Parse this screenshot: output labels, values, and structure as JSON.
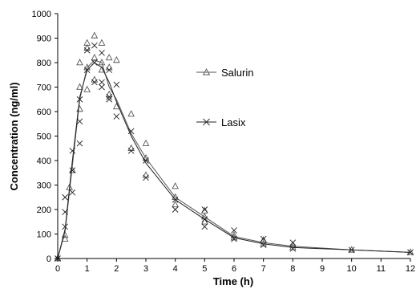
{
  "chart_data": {
    "type": "scatter",
    "xlabel": "Time (h)",
    "ylabel": "Concentration (ng/ml)",
    "xlim": [
      0,
      12
    ],
    "ylim": [
      0,
      1000
    ],
    "x_ticks": [
      0,
      1,
      2,
      3,
      4,
      5,
      6,
      7,
      8,
      9,
      10,
      11,
      12
    ],
    "y_ticks": [
      0,
      100,
      200,
      300,
      400,
      500,
      600,
      700,
      800,
      900,
      1000
    ],
    "grid": false,
    "legend_position": "upper-middle",
    "series": [
      {
        "name": "Salurin",
        "marker": "triangle-open",
        "color": "#555555",
        "mean_curve": [
          [
            0,
            0
          ],
          [
            0.25,
            110
          ],
          [
            0.5,
            380
          ],
          [
            0.75,
            650
          ],
          [
            1.0,
            780
          ],
          [
            1.25,
            810
          ],
          [
            1.5,
            800
          ],
          [
            1.75,
            700
          ],
          [
            2.0,
            650
          ],
          [
            2.5,
            510
          ],
          [
            3.0,
            410
          ],
          [
            4.0,
            250
          ],
          [
            5.0,
            170
          ],
          [
            6.0,
            90
          ],
          [
            7.0,
            65
          ],
          [
            8.0,
            50
          ],
          [
            10.0,
            35
          ],
          [
            12.0,
            25
          ]
        ],
        "points": [
          [
            0,
            0
          ],
          [
            0.25,
            80
          ],
          [
            0.25,
            95
          ],
          [
            0.4,
            290
          ],
          [
            0.5,
            360
          ],
          [
            0.75,
            610
          ],
          [
            0.75,
            700
          ],
          [
            0.75,
            800
          ],
          [
            1.0,
            690
          ],
          [
            1.0,
            780
          ],
          [
            1.0,
            860
          ],
          [
            1.0,
            880
          ],
          [
            1.25,
            730
          ],
          [
            1.25,
            820
          ],
          [
            1.25,
            910
          ],
          [
            1.5,
            770
          ],
          [
            1.5,
            800
          ],
          [
            1.5,
            880
          ],
          [
            1.75,
            670
          ],
          [
            1.75,
            780
          ],
          [
            1.75,
            820
          ],
          [
            2.0,
            620
          ],
          [
            2.0,
            810
          ],
          [
            2.5,
            450
          ],
          [
            2.5,
            590
          ],
          [
            3.0,
            340
          ],
          [
            3.0,
            410
          ],
          [
            3.0,
            470
          ],
          [
            4.0,
            220
          ],
          [
            4.0,
            250
          ],
          [
            4.0,
            295
          ],
          [
            5.0,
            150
          ],
          [
            5.0,
            170
          ],
          [
            5.0,
            195
          ],
          [
            6.0,
            85
          ],
          [
            6.0,
            95
          ],
          [
            7.0,
            60
          ],
          [
            7.0,
            75
          ],
          [
            8.0,
            45
          ],
          [
            8.0,
            55
          ],
          [
            10.0,
            35
          ],
          [
            12.0,
            25
          ]
        ]
      },
      {
        "name": "Lasix",
        "marker": "x",
        "color": "#222222",
        "mean_curve": [
          [
            0,
            0
          ],
          [
            0.25,
            120
          ],
          [
            0.5,
            400
          ],
          [
            0.75,
            660
          ],
          [
            1.0,
            770
          ],
          [
            1.25,
            800
          ],
          [
            1.5,
            780
          ],
          [
            1.75,
            720
          ],
          [
            2.0,
            640
          ],
          [
            2.5,
            500
          ],
          [
            3.0,
            390
          ],
          [
            4.0,
            240
          ],
          [
            5.0,
            160
          ],
          [
            6.0,
            85
          ],
          [
            7.0,
            60
          ],
          [
            8.0,
            45
          ],
          [
            10.0,
            35
          ],
          [
            12.0,
            25
          ]
        ],
        "points": [
          [
            0,
            0
          ],
          [
            0.25,
            130
          ],
          [
            0.25,
            190
          ],
          [
            0.25,
            250
          ],
          [
            0.5,
            270
          ],
          [
            0.5,
            360
          ],
          [
            0.5,
            440
          ],
          [
            0.75,
            470
          ],
          [
            0.75,
            560
          ],
          [
            0.75,
            650
          ],
          [
            1.0,
            770
          ],
          [
            1.0,
            850
          ],
          [
            1.25,
            720
          ],
          [
            1.25,
            800
          ],
          [
            1.25,
            870
          ],
          [
            1.5,
            700
          ],
          [
            1.5,
            720
          ],
          [
            1.5,
            840
          ],
          [
            1.75,
            650
          ],
          [
            1.75,
            660
          ],
          [
            1.75,
            770
          ],
          [
            2.0,
            580
          ],
          [
            2.0,
            710
          ],
          [
            2.5,
            440
          ],
          [
            2.5,
            520
          ],
          [
            3.0,
            330
          ],
          [
            3.0,
            400
          ],
          [
            4.0,
            200
          ],
          [
            4.0,
            240
          ],
          [
            5.0,
            130
          ],
          [
            5.0,
            160
          ],
          [
            5.0,
            200
          ],
          [
            6.0,
            80
          ],
          [
            6.0,
            115
          ],
          [
            7.0,
            55
          ],
          [
            7.0,
            80
          ],
          [
            8.0,
            40
          ],
          [
            8.0,
            65
          ],
          [
            10.0,
            35
          ],
          [
            12.0,
            25
          ]
        ]
      }
    ]
  }
}
